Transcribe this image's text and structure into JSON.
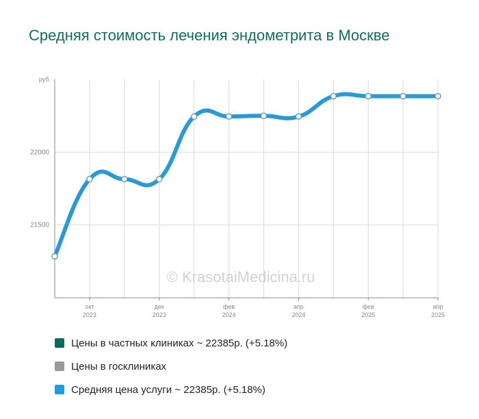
{
  "title": "Средняя стоимость лечения эндометрита в Москве",
  "watermark": "© KrasotaiMedicina.ru",
  "colors": {
    "title": "#0f6d5f",
    "line": "#2a9ad6",
    "grid": "#d9d9d9",
    "axis": "#888888",
    "tick_text": "#888888"
  },
  "legend": [
    {
      "label": "Цены в частных клиниках ~ 22385р. (+5.18%)",
      "color": "#0e6b5c"
    },
    {
      "label": "Цены в госклиниках",
      "color": "#999999"
    },
    {
      "label": "Средняя цена услуги ~ 22385р. (+5.18%)",
      "color": "#1f9cdd"
    }
  ],
  "chart_data": {
    "type": "line",
    "y_unit": "руб.",
    "ylim": [
      21000,
      22500
    ],
    "y_ticks": [
      21500,
      22000
    ],
    "x_tick_labels": [
      {
        "month": "окт",
        "year": "2023",
        "index": 1
      },
      {
        "month": "дек",
        "year": "2023",
        "index": 3
      },
      {
        "month": "фев",
        "year": "2024",
        "index": 5
      },
      {
        "month": "апр",
        "year": "2024",
        "index": 7
      },
      {
        "month": "фев",
        "year": "2025",
        "index": 9
      },
      {
        "month": "апр",
        "year": "2025",
        "index": 11
      }
    ],
    "grid": true,
    "series": [
      {
        "name": "Средняя цена услуги",
        "values": [
          21285,
          21815,
          21815,
          21815,
          22245,
          22245,
          22250,
          22245,
          22385,
          22385,
          22385,
          22385
        ]
      }
    ]
  }
}
